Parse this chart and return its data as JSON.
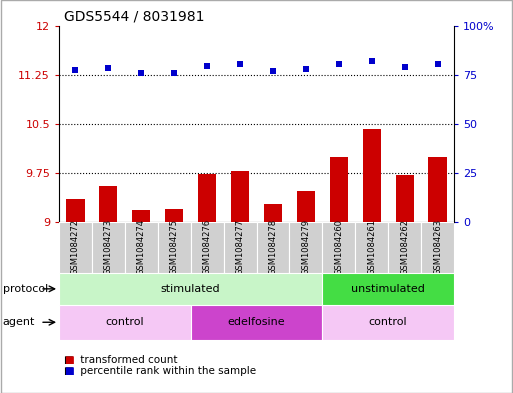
{
  "title": "GDS5544 / 8031981",
  "samples": [
    "GSM1084272",
    "GSM1084273",
    "GSM1084274",
    "GSM1084275",
    "GSM1084276",
    "GSM1084277",
    "GSM1084278",
    "GSM1084279",
    "GSM1084260",
    "GSM1084261",
    "GSM1084262",
    "GSM1084263"
  ],
  "bar_values": [
    9.35,
    9.55,
    9.18,
    9.2,
    9.73,
    9.78,
    9.27,
    9.47,
    10.0,
    10.42,
    9.72,
    10.0
  ],
  "scatter_values": [
    11.32,
    11.35,
    11.28,
    11.27,
    11.38,
    11.41,
    11.3,
    11.33,
    11.42,
    11.46,
    11.37,
    11.41
  ],
  "bar_color": "#cc0000",
  "scatter_color": "#0000cc",
  "ylim_left": [
    9.0,
    12.0
  ],
  "ylim_right": [
    0,
    100
  ],
  "yticks_left": [
    9.0,
    9.75,
    10.5,
    11.25,
    12.0
  ],
  "yticks_left_labels": [
    "9",
    "9.75",
    "10.5",
    "11.25",
    "12"
  ],
  "yticks_right": [
    0,
    25,
    50,
    75,
    100
  ],
  "yticks_right_labels": [
    "0",
    "25",
    "50",
    "75",
    "100%"
  ],
  "hlines": [
    9.75,
    10.5,
    11.25
  ],
  "protocol_labels": [
    {
      "text": "stimulated",
      "start": 0,
      "end": 7,
      "color": "#c8f5c8"
    },
    {
      "text": "unstimulated",
      "start": 8,
      "end": 11,
      "color": "#44dd44"
    }
  ],
  "agent_labels": [
    {
      "text": "control",
      "start": 0,
      "end": 3,
      "color": "#f5c8f5"
    },
    {
      "text": "edelfosine",
      "start": 4,
      "end": 7,
      "color": "#cc44cc"
    },
    {
      "text": "control",
      "start": 8,
      "end": 11,
      "color": "#f5c8f5"
    }
  ],
  "legend_items": [
    {
      "label": "transformed count",
      "color": "#cc0000"
    },
    {
      "label": "percentile rank within the sample",
      "color": "#0000cc"
    }
  ],
  "bar_width": 0.55,
  "title_fontsize": 10,
  "tick_fontsize": 8,
  "sample_fontsize": 6,
  "row_label_fontsize": 8,
  "row_text_fontsize": 8,
  "legend_fontsize": 7.5
}
